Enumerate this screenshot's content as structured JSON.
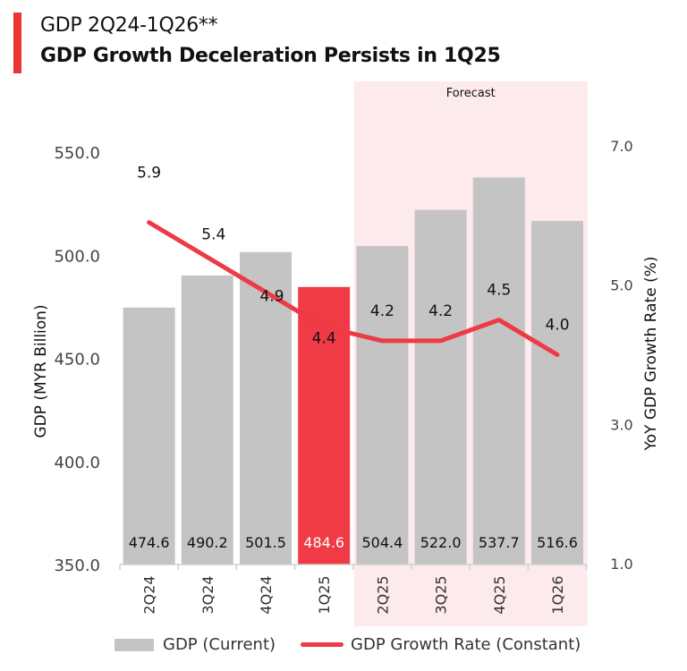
{
  "header": {
    "title": "GDP 2Q24-1Q26**",
    "subtitle": "GDP Growth Deceleration Persists in 1Q25"
  },
  "colors": {
    "accent": "#ee3333",
    "bar": "#c4c4c4",
    "highlight_bar": "#f03a45",
    "line": "#ee3a44",
    "forecast_bg": "#fdeaec"
  },
  "chart_data": {
    "type": "bar+line",
    "title": "GDP 2Q24-1Q26**",
    "subtitle": "GDP Growth Deceleration Persists in 1Q25",
    "categories": [
      "2Q24",
      "3Q24",
      "4Q24",
      "1Q25",
      "2Q25",
      "3Q25",
      "4Q25",
      "1Q26"
    ],
    "series": [
      {
        "name": "GDP (Current)",
        "type": "bar",
        "axis": "left",
        "values": [
          474.6,
          490.2,
          501.5,
          484.6,
          504.4,
          522.0,
          537.7,
          516.6
        ],
        "labels": [
          "474.6",
          "490.2",
          "501.5",
          "484.6",
          "504.4",
          "522.0",
          "537.7",
          "516.6"
        ],
        "highlight": "1Q25"
      },
      {
        "name": "GDP Growth Rate (Constant)",
        "type": "line",
        "axis": "right",
        "values": [
          5.9,
          5.4,
          4.9,
          4.4,
          4.2,
          4.2,
          4.5,
          4.0
        ],
        "labels": [
          "5.9",
          "5.4",
          "4.9",
          "4.4",
          "4.2",
          "4.2",
          "4.5",
          "4.0"
        ]
      }
    ],
    "ylabel": "GDP (MYR Billion)",
    "y2label": "YoY GDP Growth Rate (%)",
    "ylim": [
      350,
      550
    ],
    "y2lim": [
      1,
      7
    ],
    "yticks": [
      "350.0",
      "400.0",
      "450.0",
      "500.0",
      "550.0"
    ],
    "y2ticks": [
      "1.0",
      "3.0",
      "5.0",
      "7.0"
    ],
    "annotations": [
      {
        "text": "Forecast",
        "range": [
          "2Q25",
          "1Q26"
        ]
      }
    ],
    "grid": false,
    "legend": "bottom"
  },
  "legend": {
    "items": [
      "GDP (Current)",
      "GDP Growth Rate (Constant)"
    ]
  }
}
